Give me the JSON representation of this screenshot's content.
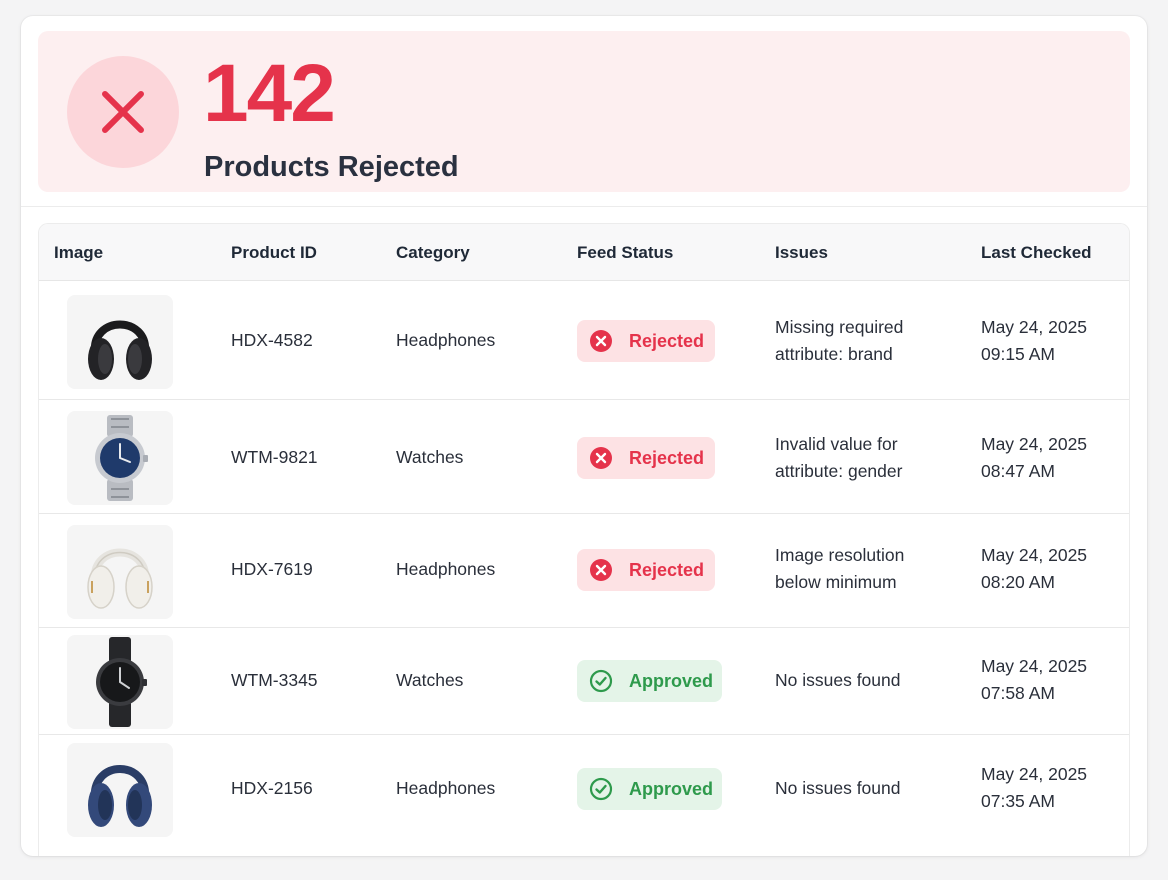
{
  "summary": {
    "count": "142",
    "label": "Products Rejected",
    "icon": "close-x-icon",
    "accent_color": "#e5334b"
  },
  "table": {
    "columns": [
      "Image",
      "Product ID",
      "Category",
      "Feed Status",
      "Issues",
      "Last Checked"
    ],
    "rows": [
      {
        "image": "black-headphones",
        "product_id": "HDX-4582",
        "category": "Headphones",
        "status": "Rejected",
        "issue_line1": "Missing required",
        "issue_line2": "attribute: brand",
        "date": "May 24, 2025",
        "time": "09:15 AM"
      },
      {
        "image": "silver-watch-blue-dial",
        "product_id": "WTM-9821",
        "category": "Watches",
        "status": "Rejected",
        "issue_line1": "Invalid value for",
        "issue_line2": "attribute: gender",
        "date": "May 24, 2025",
        "time": "08:47 AM"
      },
      {
        "image": "white-headphones",
        "product_id": "HDX-7619",
        "category": "Headphones",
        "status": "Rejected",
        "issue_line1": "Image resolution",
        "issue_line2": "below minimum",
        "date": "May 24, 2025",
        "time": "08:20 AM"
      },
      {
        "image": "black-watch",
        "product_id": "WTM-3345",
        "category": "Watches",
        "status": "Approved",
        "issue_line1": "No issues found",
        "issue_line2": "",
        "date": "May 24, 2025",
        "time": "07:58 AM"
      },
      {
        "image": "navy-headphones",
        "product_id": "HDX-2156",
        "category": "Headphones",
        "status": "Approved",
        "issue_line1": "No issues found",
        "issue_line2": "",
        "date": "May 24, 2025",
        "time": "07:35 AM"
      }
    ]
  },
  "status_colors": {
    "rejected": "#e5334b",
    "approved": "#2e9a4c"
  }
}
